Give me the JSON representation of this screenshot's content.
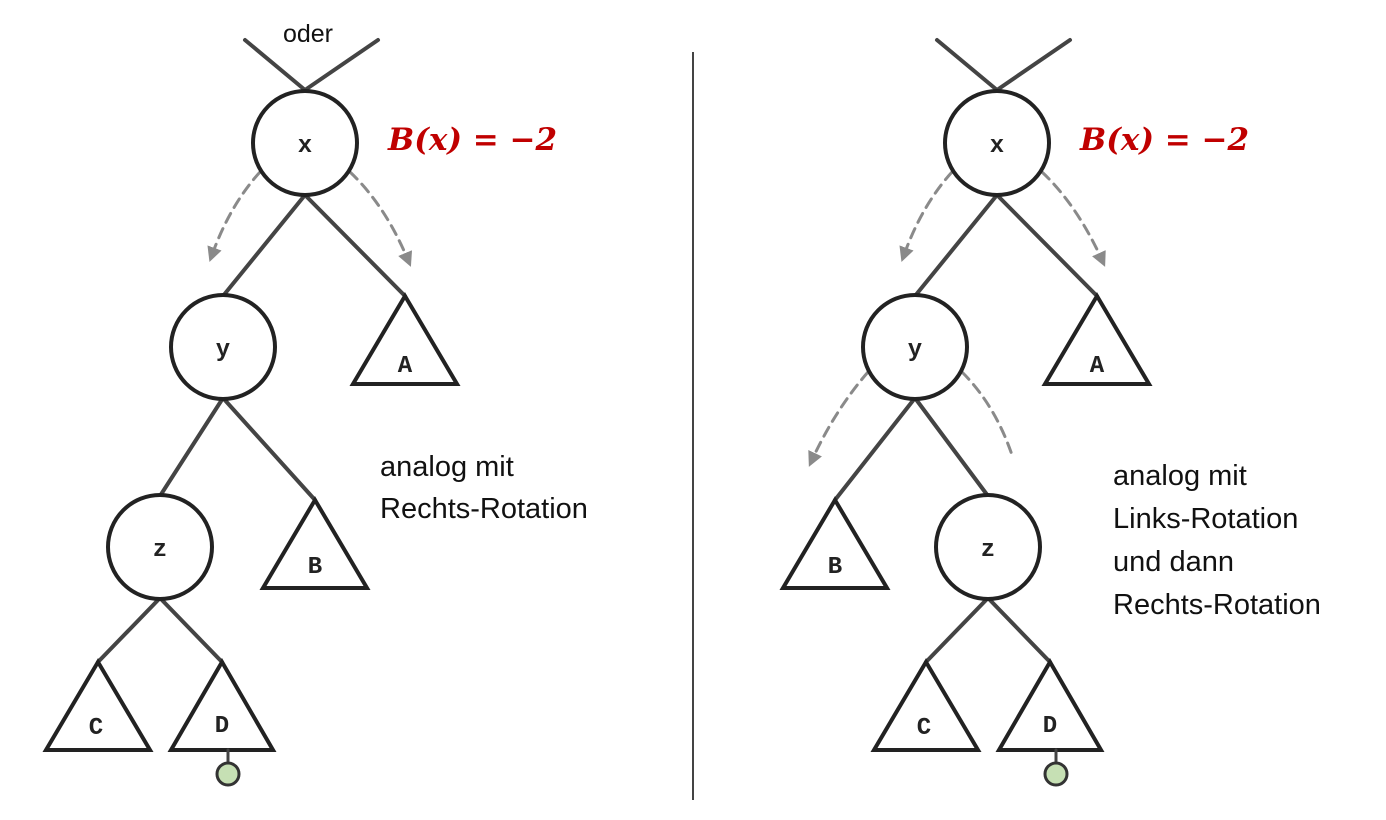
{
  "top_label": "oder",
  "colors": {
    "edge": "#444444",
    "dashed_arrow": "#8a8a8a",
    "formula": "#c00000",
    "insert_point": "#c6e0b4"
  },
  "left": {
    "formula": "B(x) = −2",
    "nodes": {
      "x": "x",
      "y": "y",
      "z": "z"
    },
    "subtrees": {
      "A": "A",
      "B": "B",
      "C": "C",
      "D": "D"
    },
    "note": [
      "analog mit",
      "Rechts-Rotation"
    ]
  },
  "right": {
    "formula": "B(x) = −2",
    "nodes": {
      "x": "x",
      "y": "y",
      "z": "z"
    },
    "subtrees": {
      "A": "A",
      "B": "B",
      "C": "C",
      "D": "D"
    },
    "note": [
      "analog mit",
      "Links-Rotation",
      "und dann",
      "Rechts-Rotation"
    ]
  }
}
